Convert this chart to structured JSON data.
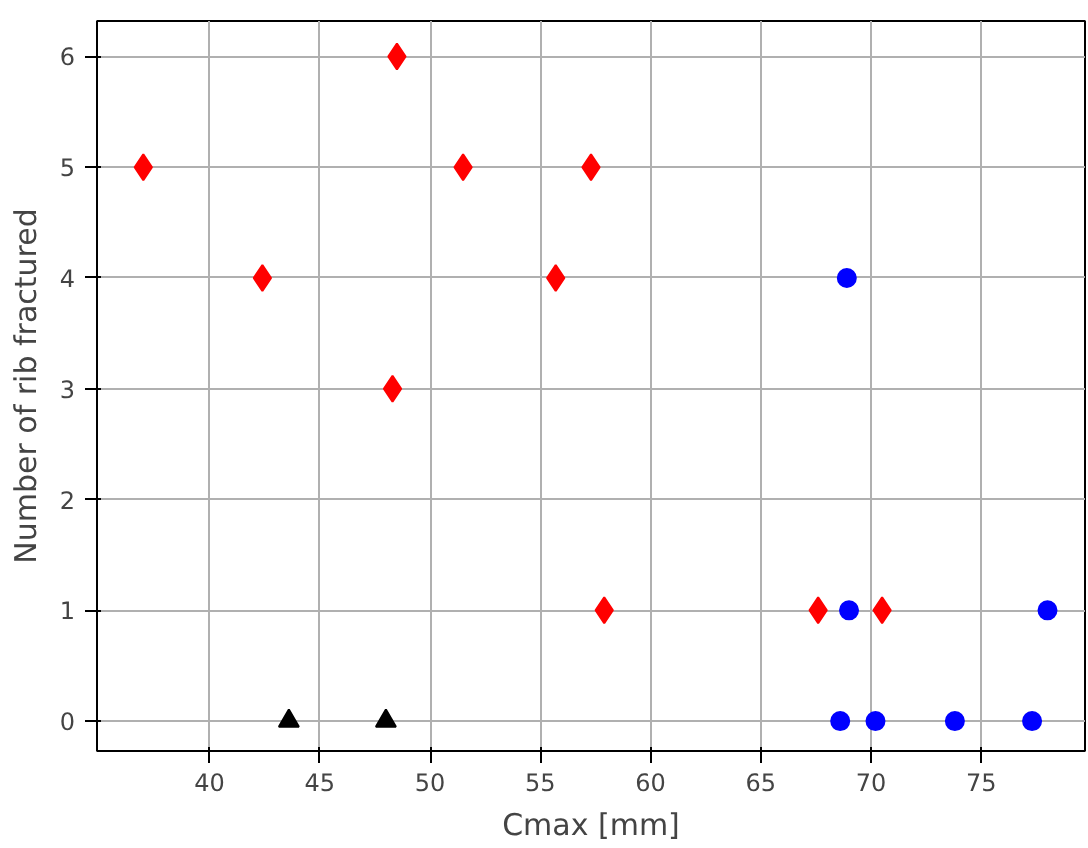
{
  "chart_data": {
    "type": "scatter",
    "xlabel": "Cmax [mm]",
    "ylabel": "Number of rib fractured",
    "xlim": [
      34.9,
      79.7
    ],
    "ylim": [
      -0.27,
      6.32
    ],
    "xticks": [
      40,
      45,
      50,
      55,
      60,
      65,
      70,
      75
    ],
    "yticks": [
      0,
      1,
      2,
      3,
      4,
      5,
      6
    ],
    "grid": true,
    "series": [
      {
        "color": "#ff0000",
        "marker": "diamond",
        "x": [
          37.0,
          42.4,
          48.5,
          48.3,
          51.5,
          55.7,
          57.3,
          57.9,
          67.6,
          70.5
        ],
        "values": [
          5,
          4,
          6,
          3,
          5,
          4,
          5,
          1,
          1,
          1
        ]
      },
      {
        "color": "#0000ff",
        "marker": "circle",
        "x": [
          68.9,
          69.0,
          68.6,
          70.2,
          73.8,
          77.3,
          78.0
        ],
        "values": [
          4,
          1,
          0,
          0,
          0,
          0,
          1
        ]
      },
      {
        "color": "#000000",
        "marker": "triangle",
        "x": [
          43.6,
          48.0
        ],
        "values": [
          0,
          0
        ]
      }
    ]
  }
}
